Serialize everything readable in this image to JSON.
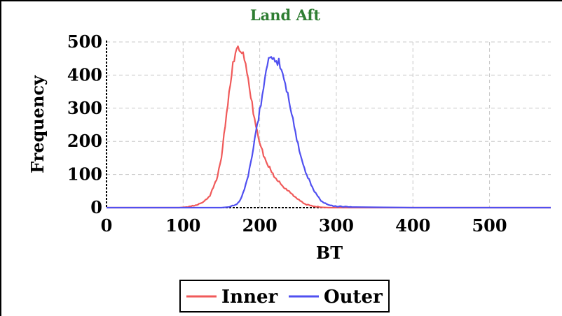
{
  "chart_data": {
    "type": "line",
    "title": "Land Aft",
    "xlabel": "BT",
    "ylabel": "Frequency",
    "xlim": [
      0,
      580
    ],
    "ylim": [
      0,
      500
    ],
    "xticks": [
      0,
      100,
      200,
      300,
      400,
      500
    ],
    "yticks": [
      0,
      100,
      200,
      300,
      400,
      500
    ],
    "grid": true,
    "legend": "bottom-center",
    "series": [
      {
        "name": "Inner",
        "color": "#f05a5a",
        "x": [
          0,
          95,
          105,
          115,
          125,
          135,
          145,
          150,
          155,
          160,
          165,
          170,
          175,
          180,
          185,
          190,
          195,
          200,
          205,
          210,
          220,
          230,
          240,
          250,
          260,
          270,
          280,
          290,
          300,
          580
        ],
        "y": [
          0,
          0,
          2,
          6,
          15,
          35,
          95,
          150,
          245,
          350,
          440,
          480,
          470,
          445,
          390,
          320,
          245,
          195,
          155,
          130,
          90,
          65,
          45,
          25,
          10,
          4,
          1,
          0,
          0,
          0
        ]
      },
      {
        "name": "Outer",
        "color": "#5050f0",
        "x": [
          0,
          150,
          160,
          170,
          175,
          180,
          185,
          190,
          195,
          200,
          205,
          210,
          215,
          220,
          225,
          230,
          235,
          240,
          245,
          250,
          255,
          260,
          270,
          280,
          290,
          300,
          320,
          350,
          400,
          580
        ],
        "y": [
          0,
          0,
          2,
          10,
          25,
          55,
          95,
          155,
          230,
          300,
          360,
          430,
          455,
          440,
          450,
          405,
          350,
          300,
          245,
          195,
          145,
          105,
          55,
          20,
          8,
          4,
          2,
          1,
          0,
          0
        ]
      }
    ]
  }
}
